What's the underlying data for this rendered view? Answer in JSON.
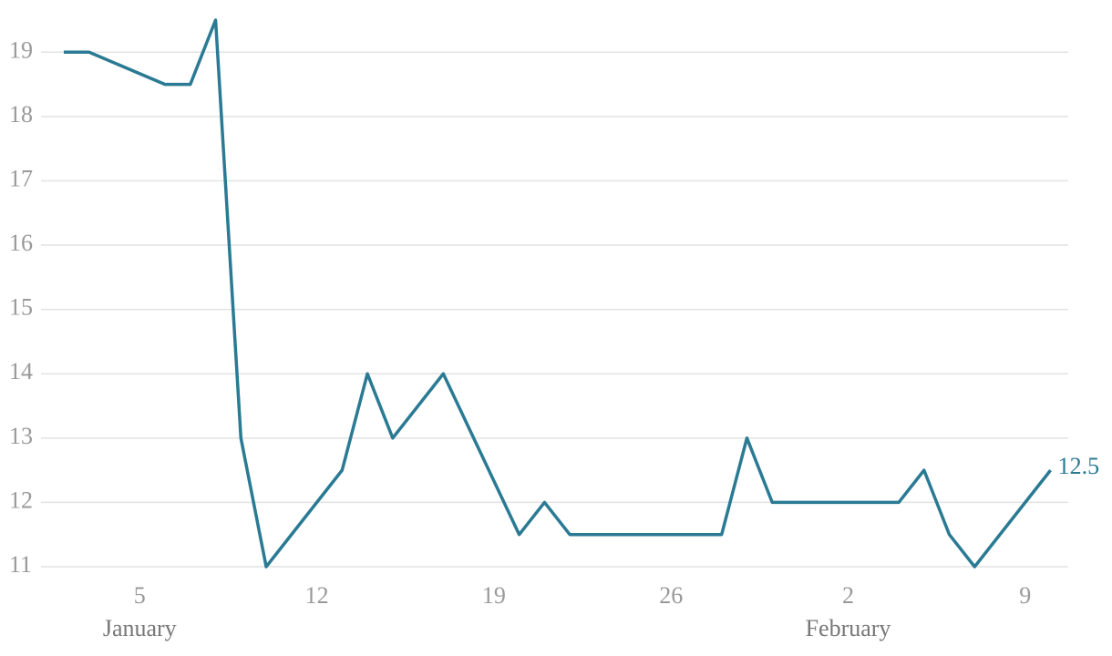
{
  "chart_data": {
    "type": "line",
    "x": [
      2,
      3,
      6,
      7,
      8,
      9,
      10,
      13,
      14,
      15,
      17,
      20,
      21,
      22,
      28,
      29,
      30,
      35,
      36,
      37,
      38,
      41
    ],
    "series": [
      {
        "color": "#2a7a94",
        "values": [
          19,
          19,
          18.5,
          18.5,
          19.5,
          13,
          11,
          12.5,
          14,
          13,
          14,
          11.5,
          12,
          11.5,
          11.5,
          13,
          12,
          12,
          12.5,
          11.5,
          11,
          12.5
        ]
      }
    ],
    "xlim": [
      1.1,
      41.7
    ],
    "xticks": [
      5,
      12,
      19,
      26,
      {
        "value": 33,
        "label": "2"
      },
      {
        "value": 40,
        "label": "9"
      }
    ],
    "month_labels": [
      {
        "value": 5,
        "label": "January"
      },
      {
        "value": 33,
        "label": "February"
      }
    ],
    "ylim": [
      11,
      19.5
    ],
    "yticks": [
      11,
      12,
      13,
      14,
      15,
      16,
      17,
      18,
      19
    ],
    "grid": true
  }
}
